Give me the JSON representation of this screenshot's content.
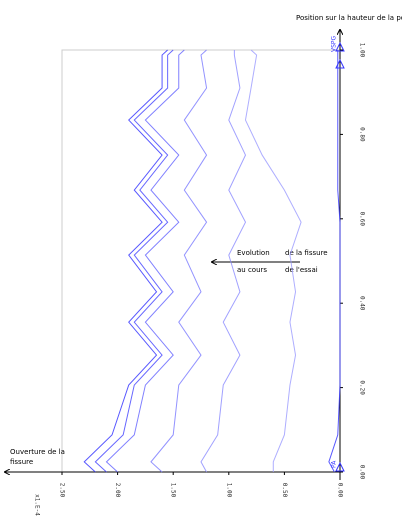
{
  "chart_data": {
    "type": "line",
    "y_axis_label": "Position sur la hauteur de la poutre",
    "x_axis_label": "Ouverture de la fissure",
    "x_multiplier": "x1.E-4",
    "annotations": [
      "Evolution",
      "de la fissure",
      "au cours",
      "de l'essai",
      "PA",
      "VSPG"
    ],
    "x": [
      0,
      0.024,
      0.088,
      0.206,
      0.277,
      0.355,
      0.427,
      0.514,
      0.592,
      0.668,
      0.751,
      0.834,
      0.91,
      0.988,
      1.0
    ],
    "series": [
      {
        "color": "#3a3aff",
        "values": [
          2.2,
          2.3,
          2.05,
          1.9,
          1.65,
          1.9,
          1.65,
          1.9,
          1.6,
          1.85,
          1.6,
          1.9,
          1.6,
          1.6,
          1.55
        ]
      },
      {
        "color": "#4b4bff",
        "values": [
          2.1,
          2.2,
          1.95,
          1.85,
          1.6,
          1.85,
          1.6,
          1.85,
          1.55,
          1.8,
          1.55,
          1.85,
          1.55,
          1.55,
          1.5
        ]
      },
      {
        "color": "#6a6aff",
        "values": [
          2.0,
          2.1,
          1.85,
          1.75,
          1.5,
          1.75,
          1.5,
          1.75,
          1.45,
          1.7,
          1.45,
          1.75,
          1.45,
          1.45,
          1.4
        ]
      },
      {
        "color": "#8080ff",
        "values": [
          1.6,
          1.7,
          1.5,
          1.45,
          1.25,
          1.45,
          1.25,
          1.4,
          1.2,
          1.4,
          1.2,
          1.4,
          1.2,
          1.25,
          1.2
        ]
      },
      {
        "color": "#9090ff",
        "values": [
          1.2,
          1.25,
          1.1,
          1.05,
          0.9,
          1.05,
          0.9,
          1.0,
          0.85,
          1.0,
          0.85,
          1.0,
          0.9,
          0.95,
          0.95
        ]
      },
      {
        "color": "#a0a0ff",
        "values": [
          0.6,
          0.6,
          0.5,
          0.45,
          0.4,
          0.45,
          0.4,
          0.45,
          0.35,
          0.5,
          0.7,
          0.85,
          0.8,
          0.75,
          0.8
        ]
      },
      {
        "color": "#3a3aff",
        "values": [
          0.05,
          0.1,
          0.02,
          0,
          0,
          0,
          0,
          0,
          0,
          0.02,
          0.02,
          0.02,
          0.02,
          0.02,
          0.02
        ]
      }
    ],
    "xlim": [
      0,
      1
    ],
    "xticks": [
      {
        "value": 0,
        "label": "0.00"
      },
      {
        "value": 0.2,
        "label": "0.20"
      },
      {
        "value": 0.4,
        "label": "0.40"
      },
      {
        "value": 0.6,
        "label": "0.60"
      },
      {
        "value": 0.8,
        "label": "0.80"
      },
      {
        "value": 1,
        "label": "1.00"
      }
    ],
    "ylim": [
      0,
      2.5
    ],
    "yticks": [
      {
        "value": 0,
        "label": "0.00"
      },
      {
        "value": 0.5,
        "label": "0.50"
      },
      {
        "value": 1,
        "label": "1.00"
      },
      {
        "value": 1.5,
        "label": "1.50"
      },
      {
        "value": 2,
        "label": "2.00"
      },
      {
        "value": 2.5,
        "label": "2.50"
      }
    ]
  }
}
